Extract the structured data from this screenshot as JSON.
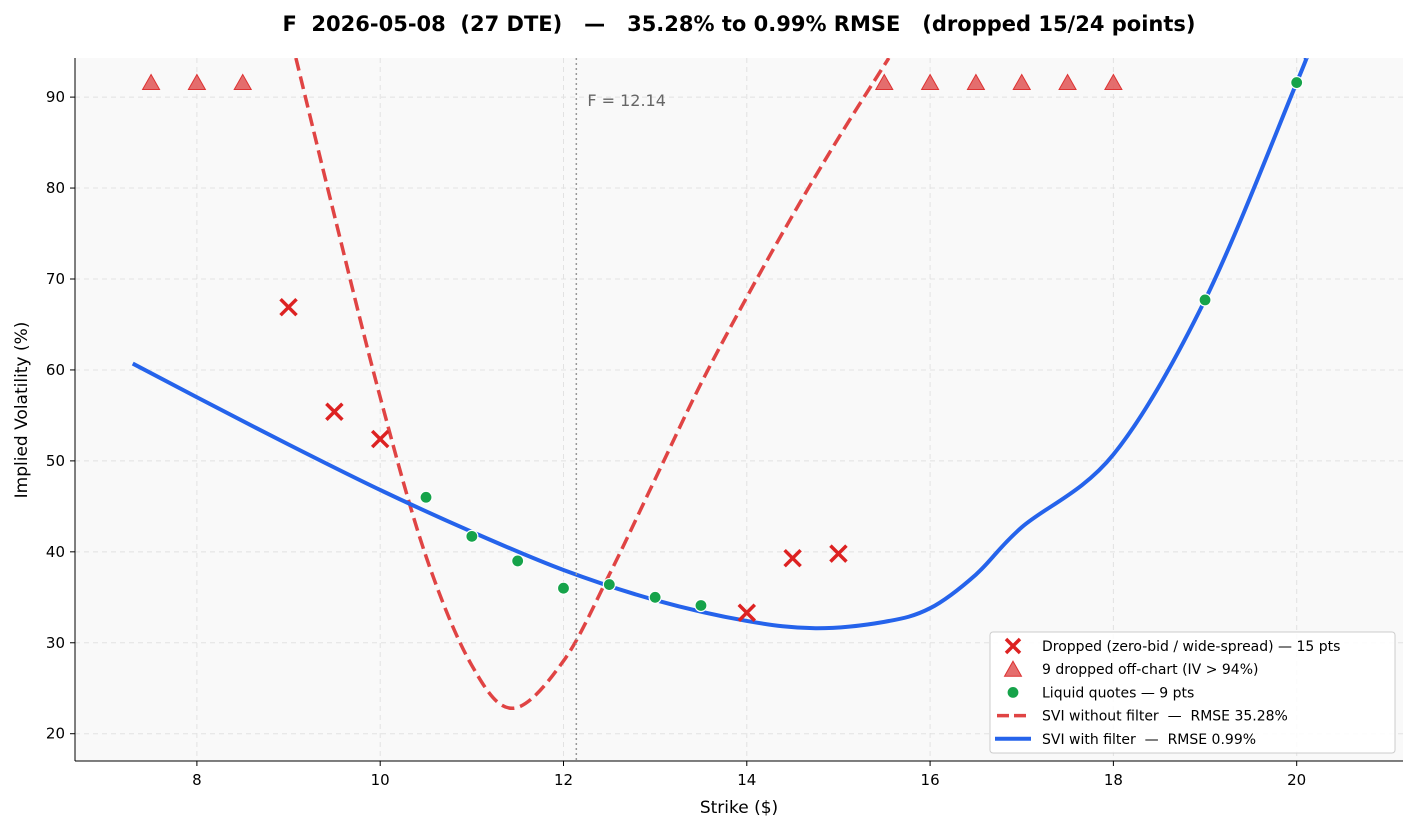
{
  "chart_data": {
    "type": "scatter",
    "title": "F  2026-05-08  (27 DTE)   —   35.28% to 0.99% RMSE   (dropped 15/24 points)",
    "xlabel": "Strike ($)",
    "ylabel": "Implied Volatility (%)",
    "xlim": [
      6.67,
      21.16
    ],
    "ylim": [
      17.0,
      94.3
    ],
    "xticks": [
      8,
      10,
      12,
      14,
      16,
      18,
      20
    ],
    "yticks": [
      20,
      30,
      40,
      50,
      60,
      70,
      80,
      90
    ],
    "grid": true,
    "legend_position": "bottom-right",
    "forward": {
      "value": 12.14,
      "label": "F = 12.14"
    },
    "colors": {
      "dropped": "#dd2222",
      "offchart": "#e05555",
      "liquid": "#16a34a",
      "svi_nofilter": "#e04444",
      "svi_filter": "#2563eb"
    },
    "series": [
      {
        "name": "Dropped (zero-bid / wide-spread) — 15 pts",
        "kind": "x-marker",
        "x": [
          9,
          9.5,
          10,
          14,
          14.5,
          15
        ],
        "y": [
          66.9,
          55.4,
          52.4,
          33.3,
          39.3,
          39.8
        ]
      },
      {
        "name": "9 dropped off-chart (IV > 94%)",
        "kind": "triangle",
        "x": [
          7.5,
          8,
          8.5,
          15.5,
          16,
          16.5,
          17,
          17.5,
          18
        ],
        "y": [
          91.5,
          91.5,
          91.5,
          91.5,
          91.5,
          91.5,
          91.5,
          91.5,
          91.5
        ]
      },
      {
        "name": "Liquid quotes — 9 pts",
        "kind": "dot",
        "x": [
          10.5,
          11,
          11.5,
          12,
          12.5,
          13,
          13.5,
          19,
          20
        ],
        "y": [
          46.0,
          41.7,
          39.0,
          36.0,
          36.4,
          35.0,
          34.1,
          67.7,
          91.6
        ]
      },
      {
        "name": "SVI without filter  —  RMSE 35.28%",
        "kind": "dashed-line",
        "x": [
          9.08,
          9.5,
          10,
          10.5,
          11,
          11.45,
          12,
          12.5,
          13,
          13.5,
          14,
          14.5,
          15,
          15.55
        ],
        "y": [
          94.3,
          77,
          57,
          39.5,
          27.5,
          22.8,
          28,
          37.5,
          48,
          58.5,
          68,
          77,
          85.5,
          94.3
        ]
      },
      {
        "name": "SVI with filter  —  RMSE 0.99%",
        "kind": "solid-line",
        "x": [
          7.3,
          8,
          9,
          10,
          11,
          12,
          13,
          14,
          14.75,
          15.5,
          16,
          16.5,
          17,
          18,
          19,
          20,
          20.1
        ],
        "y": [
          60.7,
          57,
          51.8,
          46.8,
          42.2,
          38,
          34.7,
          32.4,
          31.6,
          32.3,
          33.8,
          37.5,
          42.7,
          50.7,
          67.7,
          91.6,
          94.3
        ]
      }
    ]
  }
}
